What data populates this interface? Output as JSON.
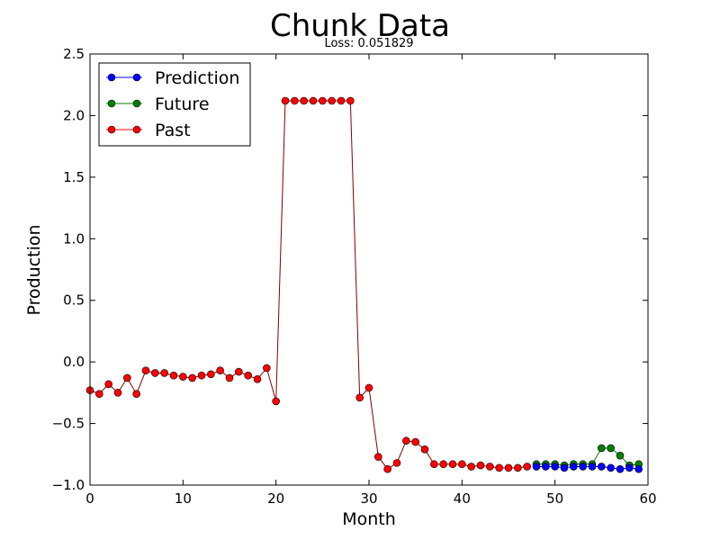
{
  "chart_data": {
    "type": "line",
    "title": "Chunk Data",
    "subtitle": "Loss: 0.051829",
    "xlabel": "Month",
    "ylabel": "Production",
    "xlim": [
      0,
      60
    ],
    "ylim": [
      -1.0,
      2.5
    ],
    "xticks": [
      0,
      10,
      20,
      30,
      40,
      50,
      60
    ],
    "xtick_labels": [
      "0",
      "10",
      "20",
      "30",
      "40",
      "50",
      "60"
    ],
    "yticks": [
      -1.0,
      -0.5,
      0.0,
      0.5,
      1.0,
      1.5,
      2.0,
      2.5
    ],
    "ytick_labels": [
      "−1.0",
      "−0.5",
      "0.0",
      "0.5",
      "1.0",
      "1.5",
      "2.0",
      "2.5"
    ],
    "grid": false,
    "legend_position": "top-left",
    "series": [
      {
        "name": "Past",
        "color": "#ff0000",
        "line_color": "#800000",
        "x": [
          0,
          1,
          2,
          3,
          4,
          5,
          6,
          7,
          8,
          9,
          10,
          11,
          12,
          13,
          14,
          15,
          16,
          17,
          18,
          19,
          20,
          21,
          22,
          23,
          24,
          25,
          26,
          27,
          28,
          29,
          30,
          31,
          32,
          33,
          34,
          35,
          36,
          37,
          38,
          39,
          40,
          41,
          42,
          43,
          44,
          45,
          46,
          47
        ],
        "values": [
          -0.23,
          -0.26,
          -0.18,
          -0.25,
          -0.13,
          -0.26,
          -0.07,
          -0.09,
          -0.09,
          -0.11,
          -0.12,
          -0.13,
          -0.11,
          -0.1,
          -0.07,
          -0.13,
          -0.08,
          -0.11,
          -0.14,
          -0.05,
          -0.32,
          2.12,
          2.12,
          2.12,
          2.12,
          2.12,
          2.12,
          2.12,
          2.12,
          -0.29,
          -0.21,
          -0.77,
          -0.87,
          -0.82,
          -0.64,
          -0.65,
          -0.71,
          -0.83,
          -0.83,
          -0.83,
          -0.83,
          -0.85,
          -0.84,
          -0.85,
          -0.86,
          -0.86,
          -0.86,
          -0.85
        ]
      },
      {
        "name": "Future",
        "color": "#008000",
        "line_color": "#008000",
        "x": [
          48,
          49,
          50,
          51,
          52,
          53,
          54,
          55,
          56,
          57,
          58,
          59
        ],
        "values": [
          -0.83,
          -0.83,
          -0.83,
          -0.84,
          -0.83,
          -0.83,
          -0.83,
          -0.7,
          -0.7,
          -0.76,
          -0.84,
          -0.83
        ]
      },
      {
        "name": "Prediction",
        "color": "#0000ff",
        "line_color": "#0000ff",
        "x": [
          48,
          49,
          50,
          51,
          52,
          53,
          54,
          55,
          56,
          57,
          58,
          59
        ],
        "values": [
          -0.85,
          -0.85,
          -0.85,
          -0.86,
          -0.85,
          -0.85,
          -0.85,
          -0.85,
          -0.86,
          -0.87,
          -0.86,
          -0.87
        ]
      }
    ],
    "legend": [
      {
        "name": "Prediction",
        "color": "#0000ff"
      },
      {
        "name": "Future",
        "color": "#008000"
      },
      {
        "name": "Past",
        "color": "#ff0000"
      }
    ]
  }
}
